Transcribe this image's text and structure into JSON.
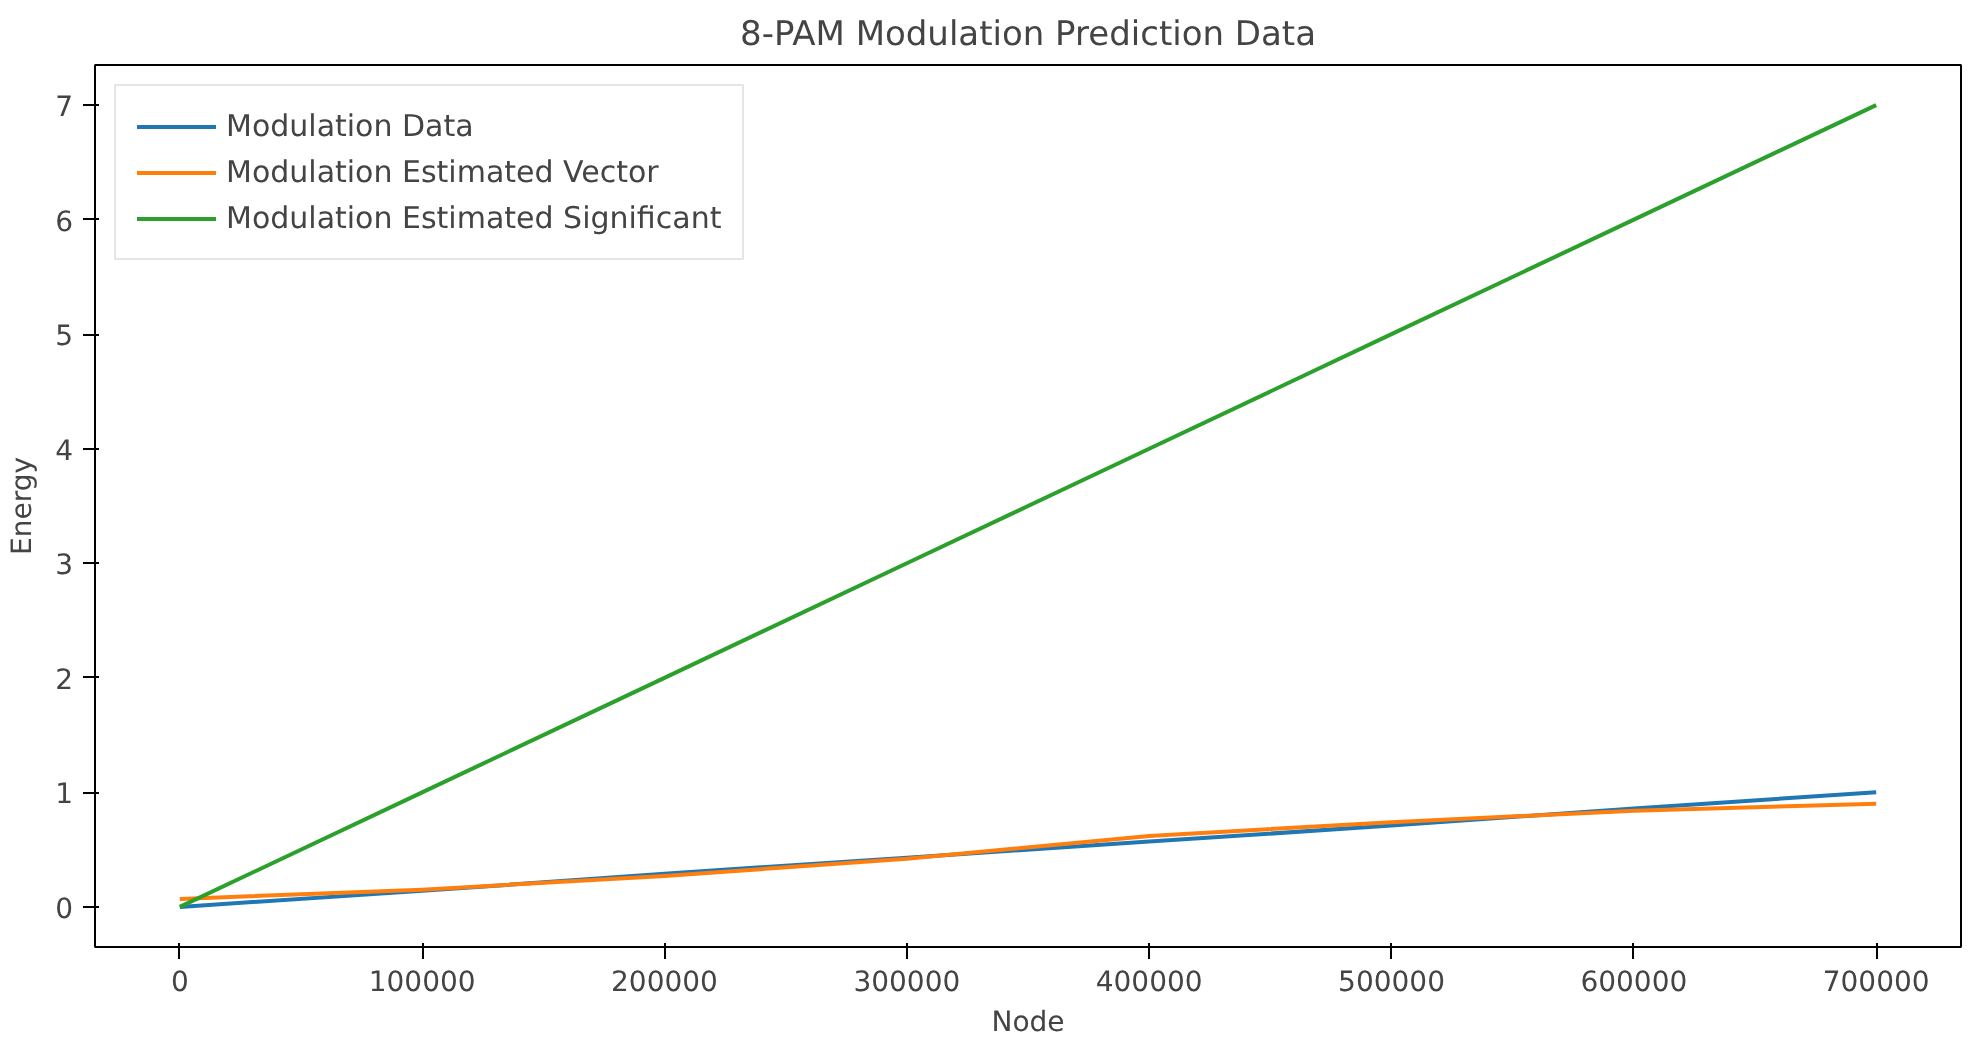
{
  "chart_data": {
    "type": "line",
    "title": "8-PAM Modulation Prediction Data",
    "xlabel": "Node",
    "ylabel": "Energy",
    "x": [
      0,
      100000,
      200000,
      300000,
      400000,
      500000,
      600000,
      700000
    ],
    "xlim": [
      -35000,
      735000
    ],
    "ylim": [
      -0.35,
      7.35
    ],
    "xticks": [
      0,
      100000,
      200000,
      300000,
      400000,
      500000,
      600000,
      700000
    ],
    "yticks": [
      0,
      1,
      2,
      3,
      4,
      5,
      6,
      7
    ],
    "series": [
      {
        "name": "Modulation Data",
        "color": "#1f77b4",
        "values": [
          0.0,
          0.14,
          0.29,
          0.43,
          0.57,
          0.71,
          0.86,
          1.0
        ]
      },
      {
        "name": "Modulation Estimated Vector",
        "color": "#ff7f0e",
        "values": [
          0.07,
          0.15,
          0.27,
          0.42,
          0.62,
          0.74,
          0.84,
          0.9
        ]
      },
      {
        "name": "Modulation Estimated Significant",
        "color": "#2ca02c",
        "values": [
          0.0,
          1.0,
          2.0,
          3.0,
          4.0,
          5.0,
          6.0,
          7.0
        ]
      }
    ],
    "legend": "top left",
    "grid": false,
    "marker": "none",
    "line_style": "solid"
  }
}
